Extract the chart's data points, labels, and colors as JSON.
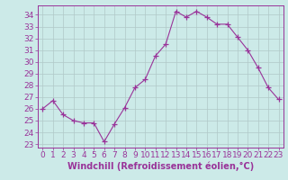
{
  "x": [
    0,
    1,
    2,
    3,
    4,
    5,
    6,
    7,
    8,
    9,
    10,
    11,
    12,
    13,
    14,
    15,
    16,
    17,
    18,
    19,
    20,
    21,
    22,
    23
  ],
  "y": [
    26.0,
    26.7,
    25.5,
    25.0,
    24.8,
    24.8,
    23.2,
    24.7,
    26.1,
    27.8,
    28.5,
    30.5,
    31.5,
    34.3,
    33.8,
    34.3,
    33.8,
    33.2,
    33.2,
    32.1,
    31.0,
    29.5,
    27.8,
    26.8
  ],
  "line_color": "#993399",
  "marker": "+",
  "marker_size": 4,
  "bg_color": "#cceae8",
  "grid_color": "#b0c8c8",
  "xlabel": "Windchill (Refroidissement éolien,°C)",
  "ylabel_ticks": [
    23,
    24,
    25,
    26,
    27,
    28,
    29,
    30,
    31,
    32,
    33,
    34
  ],
  "xlim": [
    -0.5,
    23.5
  ],
  "ylim": [
    22.7,
    34.8
  ],
  "xlabel_fontsize": 7,
  "tick_fontsize": 6.5
}
